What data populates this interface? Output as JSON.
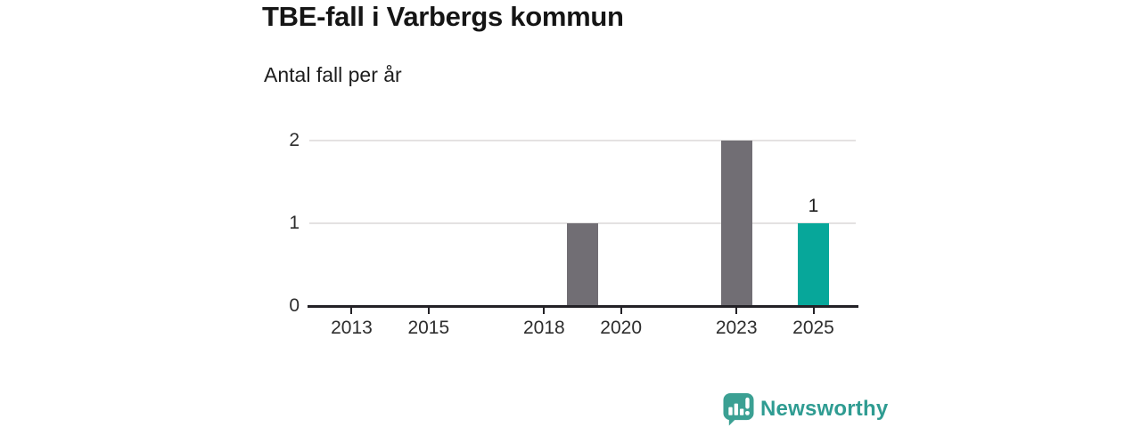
{
  "chart_data": {
    "type": "bar",
    "title": "TBE-fall i Varbergs kommun",
    "subtitle": "Antal fall per år",
    "xlabel": "",
    "ylabel": "Antal fall per år",
    "ylim": [
      0,
      2
    ],
    "y_ticks": [
      0,
      1,
      2
    ],
    "x_tick_years": [
      "2013",
      "2015",
      "2018",
      "2020",
      "2023",
      "2025"
    ],
    "x_domain": [
      2011.9,
      2026.1
    ],
    "grid": true,
    "legend": "none",
    "bars": [
      {
        "year": 2019,
        "value": 1,
        "color": "#716e74",
        "label": ""
      },
      {
        "year": 2023,
        "value": 2,
        "color": "#716e74",
        "label": ""
      },
      {
        "year": 2025,
        "value": 1,
        "color": "#07a79a",
        "label": "1"
      }
    ]
  },
  "branding": {
    "logo_text": "Newsworthy",
    "logo_icon": "bar-chart-speech-bubble-icon"
  },
  "colors": {
    "bar_default": "#716e74",
    "bar_highlight": "#07a79a",
    "axis": "#232126",
    "gridline": "#e4e2e2",
    "tick_label": "#2d2d2d",
    "title": "#151515",
    "logo": "#3ba093",
    "logo_text": "#2f9c92"
  }
}
